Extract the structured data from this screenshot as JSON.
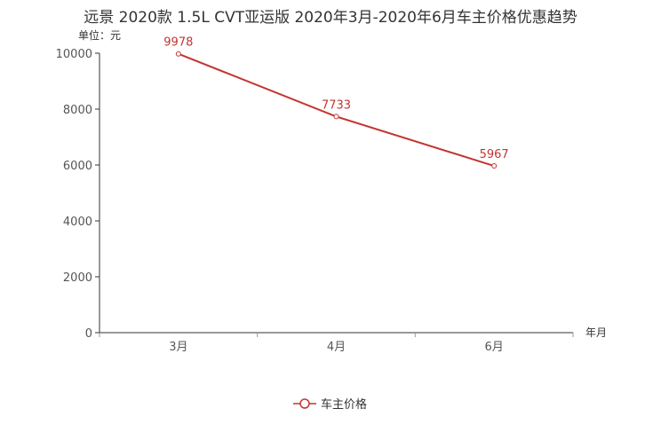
{
  "chart_data": {
    "type": "line",
    "title": "远景 2020款 1.5L CVT亚运版 2020年3月-2020年6月车主价格优惠趋势",
    "ylabel": "单位：元",
    "xlabel": "年月",
    "categories": [
      "3月",
      "4月",
      "6月"
    ],
    "series": [
      {
        "name": "车主价格",
        "values": [
          9978,
          7733,
          5967
        ],
        "color": "#c23531"
      }
    ],
    "ylim": [
      0,
      10000
    ],
    "yticks": [
      0,
      2000,
      4000,
      6000,
      8000,
      10000
    ],
    "grid": false,
    "legend": "bottom-center"
  }
}
